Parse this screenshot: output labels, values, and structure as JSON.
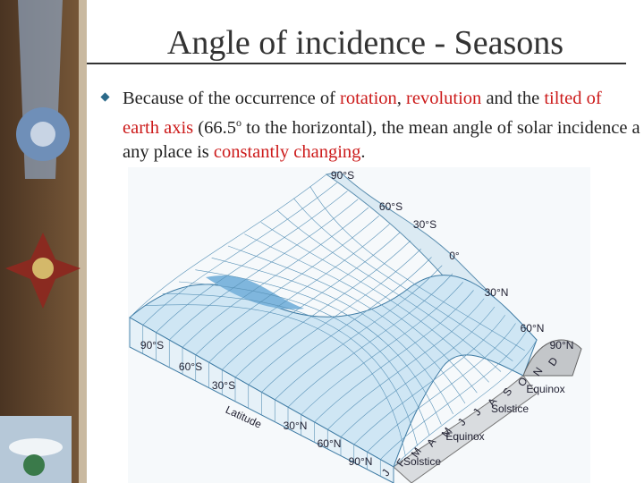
{
  "slide": {
    "title": "Angle of incidence - Seasons",
    "bullet": [
      "Because of the occurrence of ",
      "rotation",
      ", ",
      "revolution",
      " and the ",
      "tilted of earth axis",
      " (66.5",
      "o",
      " to the horizontal), the mean angle of solar incidence a any place is ",
      "constantly changing",
      "."
    ],
    "figure": {
      "labels": [
        "90°S",
        "60°S",
        "30°S",
        "0°",
        "30°N",
        "60°N",
        "90°N",
        "90°S",
        "60°S",
        "30°S",
        "Latitude",
        "30°N",
        "60°N",
        "90°N",
        "J",
        "F",
        "M",
        "A",
        "M",
        "J",
        "J",
        "A",
        "S",
        "O",
        "N",
        "D",
        "Equinox",
        "Solstice",
        "Equinox",
        "Solstice"
      ]
    }
  }
}
